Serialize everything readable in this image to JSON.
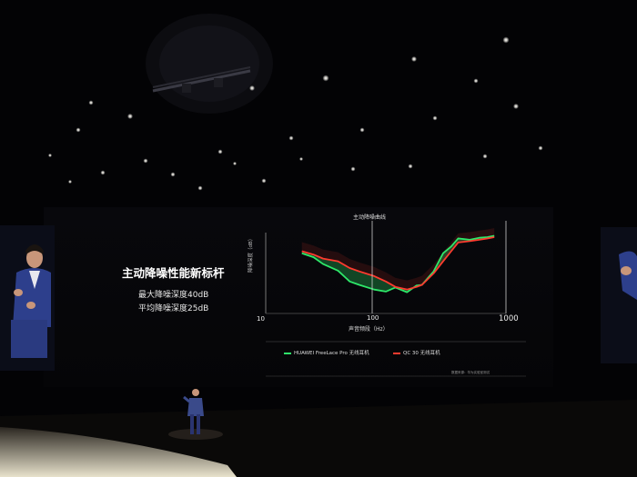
{
  "slide": {
    "title": "主动降噪性能新标杆",
    "line1": "最大降噪深度40dB",
    "line2": "平均降噪深度25dB"
  },
  "chart": {
    "title": "主动降噪曲线",
    "xlabel": "声音频段（Hz）",
    "ylabel": "降噪深度（dB）",
    "ticks": [
      "10",
      "100",
      "1000"
    ],
    "legend": [
      {
        "label": "HUAWEI FreeLace Pro 无线耳机",
        "color": "#2ee86a"
      },
      {
        "label": "QC 30 无线耳机",
        "color": "#ff3b2f"
      }
    ],
    "footnote": "数据来源：华为实验室测试"
  },
  "chart_data": {
    "type": "line",
    "title": "主动降噪曲线",
    "xlabel": "声音频段（Hz）",
    "ylabel": "降噪深度（dB）",
    "xscale": "log",
    "xlim": [
      10,
      1000
    ],
    "series": [
      {
        "name": "HUAWEI FreeLace Pro 无线耳机",
        "color": "#2ee86a",
        "x": [
          20,
          25,
          30,
          40,
          50,
          60,
          80,
          100,
          120,
          150,
          180,
          200,
          250,
          300,
          350,
          400,
          500,
          600,
          700,
          800
        ],
        "y": [
          0.28,
          0.34,
          0.44,
          0.54,
          0.7,
          0.75,
          0.82,
          0.85,
          0.79,
          0.86,
          0.76,
          0.75,
          0.55,
          0.28,
          0.18,
          0.06,
          0.08,
          0.05,
          0.04,
          0.02
        ]
      },
      {
        "name": "QC 30 无线耳机",
        "color": "#ff3b2f",
        "x": [
          20,
          25,
          30,
          40,
          50,
          60,
          80,
          100,
          120,
          150,
          180,
          200,
          250,
          300,
          350,
          400,
          500,
          600,
          700,
          800
        ],
        "y": [
          0.25,
          0.3,
          0.36,
          0.4,
          0.5,
          0.55,
          0.62,
          0.7,
          0.78,
          0.82,
          0.78,
          0.75,
          0.58,
          0.4,
          0.25,
          0.12,
          0.1,
          0.08,
          0.06,
          0.04
        ]
      }
    ]
  }
}
